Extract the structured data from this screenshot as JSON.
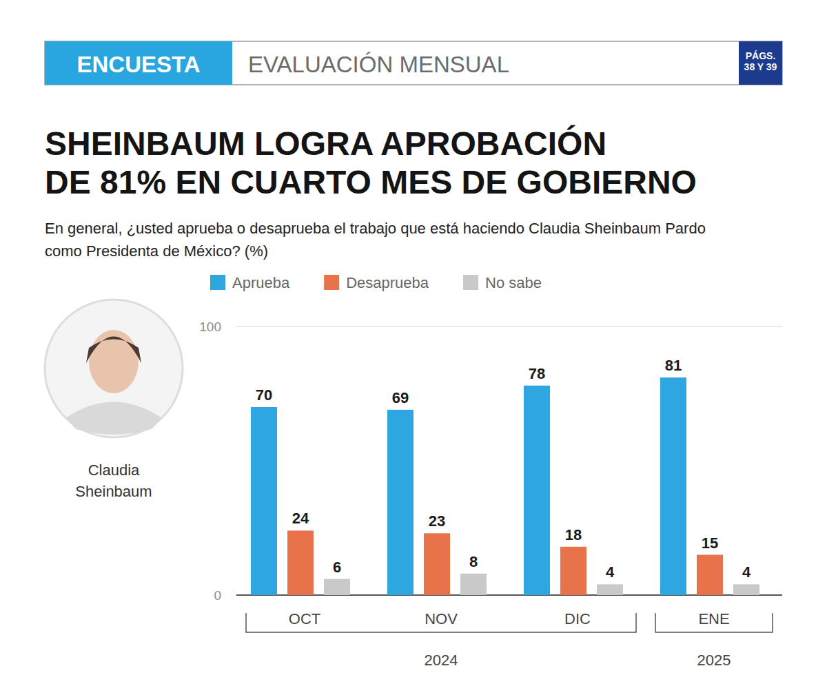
{
  "chart_data": {
    "type": "bar",
    "header": {
      "tag": "ENCUESTA",
      "section": "EVALUACIÓN MENSUAL",
      "pages": [
        "PÁGS.",
        "38 Y 39"
      ]
    },
    "title": [
      "SHEINBAUM LOGRA APROBACIÓN",
      "DE 81% EN CUARTO MES DE GOBIERNO"
    ],
    "subtitle": "En general, ¿usted aprueba o desaprueba el trabajo que está haciendo Claudia Sheinbaum Pardo como Presidenta de México? (%)",
    "photo_caption": "Claudia Sheinbaum",
    "categories": [
      "OCT",
      "NOV",
      "DIC",
      "ENE"
    ],
    "x_groups": [
      {
        "label": "2024",
        "categories": [
          "OCT",
          "NOV",
          "DIC"
        ]
      },
      {
        "label": "2025",
        "categories": [
          "ENE"
        ]
      }
    ],
    "series": [
      {
        "name": "Aprueba",
        "color": "#2ea7e0",
        "values": [
          70,
          69,
          78,
          81
        ]
      },
      {
        "name": "Desaprueba",
        "color": "#e8734a",
        "values": [
          24,
          23,
          18,
          15
        ]
      },
      {
        "name": "No sabe",
        "color": "#c9c9c9",
        "values": [
          6,
          8,
          4,
          4
        ]
      }
    ],
    "ylim": [
      0,
      100
    ],
    "yticks": [
      0,
      100
    ],
    "grid": true,
    "legend": "top",
    "data_labels": true
  }
}
